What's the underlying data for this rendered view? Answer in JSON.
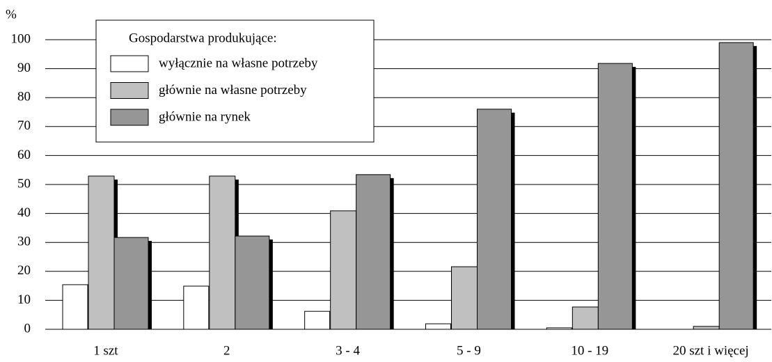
{
  "chart_data": {
    "type": "bar",
    "y_label": "%",
    "legend_title": "Gospodarstwa produkujące:",
    "categories": [
      "1 szt",
      "2",
      "3 - 4",
      "5 - 9",
      "10 - 19",
      "20 szt i więcej"
    ],
    "series": [
      {
        "name": "wyłącznie na własne potrzeby",
        "color": "#ffffff",
        "values": [
          15.4,
          14.9,
          6.2,
          1.9,
          0.5,
          0
        ]
      },
      {
        "name": "głównie na własne potrzeby",
        "color": "#c0c0c0",
        "values": [
          52.9,
          52.9,
          40.9,
          21.6,
          7.7,
          1.0
        ]
      },
      {
        "name": "głównie na rynek",
        "color": "#969696",
        "values": [
          31.7,
          32.2,
          53.4,
          76.0,
          91.8,
          99.0
        ]
      }
    ],
    "ylim": [
      0,
      100
    ],
    "yticks": [
      0,
      10,
      20,
      30,
      40,
      50,
      60,
      70,
      80,
      90,
      100
    ],
    "grid": true
  }
}
